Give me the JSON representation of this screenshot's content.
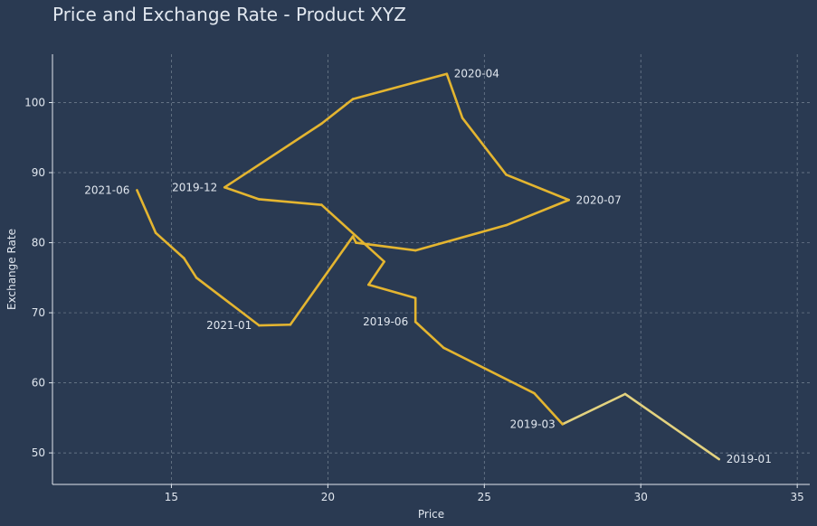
{
  "chart_data": {
    "type": "line",
    "title": "Price and Exchange Rate - Product XYZ",
    "xlabel": "Price",
    "ylabel": "Exchange Rate",
    "xlim": [
      11.2,
      35.4
    ],
    "ylim": [
      45.5,
      106.9
    ],
    "xticks": [
      15,
      20,
      25,
      30,
      35
    ],
    "yticks": [
      50,
      60,
      70,
      80,
      90,
      100
    ],
    "grid": true,
    "colors": {
      "background": "#2a3a52",
      "line": "#e4b530",
      "line_faded": "#e3d27f",
      "grid": "#8a98a6",
      "axis": "#e1e7ef",
      "text": "#e1e7ef"
    },
    "series": [
      {
        "points": [
          [
            32.5,
            49.1
          ],
          [
            29.5,
            58.4
          ],
          [
            27.5,
            54.1
          ],
          [
            26.6,
            58.5
          ],
          [
            23.7,
            65.0
          ],
          [
            22.8,
            68.7
          ],
          [
            22.8,
            72.1
          ],
          [
            21.3,
            74.0
          ],
          [
            21.8,
            77.3
          ],
          [
            19.8,
            85.4
          ],
          [
            17.8,
            86.2
          ],
          [
            16.7,
            87.9
          ],
          [
            19.8,
            97.0
          ],
          [
            20.8,
            100.5
          ],
          [
            23.8,
            104.1
          ],
          [
            24.3,
            97.8
          ],
          [
            25.7,
            89.7
          ],
          [
            27.7,
            86.1
          ],
          [
            25.7,
            82.5
          ],
          [
            22.8,
            78.9
          ],
          [
            20.9,
            80.0
          ],
          [
            20.8,
            80.9
          ],
          [
            18.8,
            68.3
          ],
          [
            17.8,
            68.2
          ],
          [
            15.8,
            75.0
          ],
          [
            15.4,
            77.8
          ],
          [
            14.5,
            81.4
          ],
          [
            13.9,
            87.5
          ]
        ]
      }
    ],
    "annotations": [
      {
        "text": "2019-01",
        "x": 32.5,
        "y": 49.1
      },
      {
        "text": "2019-03",
        "x": 27.5,
        "y": 54.1
      },
      {
        "text": "2019-06",
        "x": 22.8,
        "y": 68.7
      },
      {
        "text": "2019-12",
        "x": 16.7,
        "y": 87.9
      },
      {
        "text": "2020-04",
        "x": 23.8,
        "y": 104.1
      },
      {
        "text": "2020-07",
        "x": 27.7,
        "y": 86.1
      },
      {
        "text": "2021-01",
        "x": 17.8,
        "y": 68.2
      },
      {
        "text": "2021-06",
        "x": 13.9,
        "y": 87.5
      }
    ]
  }
}
